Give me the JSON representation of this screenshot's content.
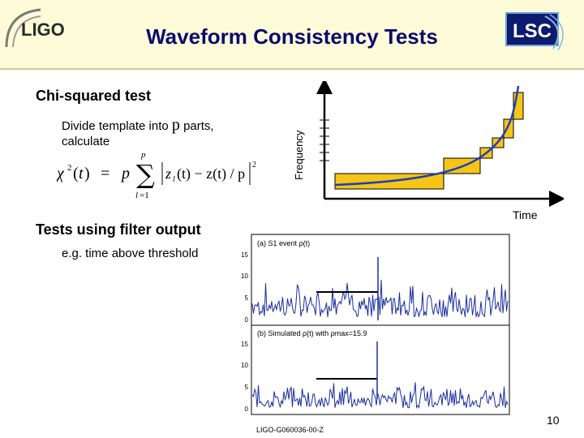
{
  "header": {
    "title": "Waveform Consistency Tests",
    "left_logo_text": "LIGO",
    "right_logo_text": "LSC"
  },
  "chi_squared": {
    "heading": "Chi-squared test",
    "line1_before": "Divide template into ",
    "line1_var": "p",
    "line1_after": " parts,",
    "line2": "calculate"
  },
  "frequency_plot": {
    "ylabel": "Frequency",
    "xlabel": "Time"
  },
  "filter_output": {
    "heading": "Tests using filter output",
    "subtext": "e.g. time above threshold"
  },
  "signal_panels": {
    "panel_a_title": "(a) S1 event ρ(t)",
    "panel_b_title": "(b) Simulated ρ(t) with ρmax=15.9",
    "ticks_a": [
      "15",
      "10",
      "5",
      "0"
    ],
    "ticks_b": [
      "15",
      "10",
      "5",
      "0"
    ]
  },
  "footer": {
    "doc_id": "LIGO-G060036-00-Z",
    "page_number": "10"
  },
  "colors": {
    "title": "#0a0a6e",
    "banner": "#fefcd8",
    "bar_fill": "#f5c518",
    "curve": "#1f3fb8",
    "noise": "#1a2fa0"
  }
}
